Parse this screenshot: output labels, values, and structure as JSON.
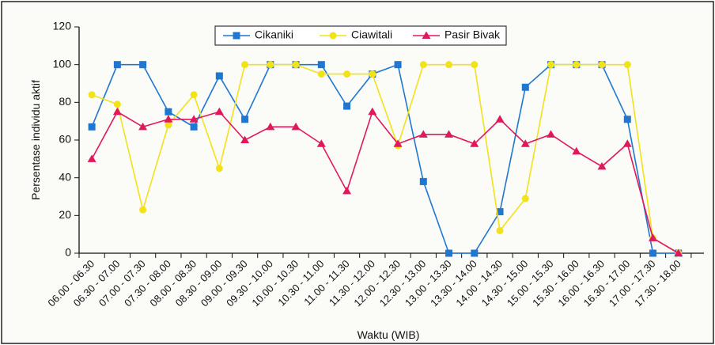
{
  "chart_data": {
    "type": "line",
    "title": "",
    "xlabel": "Waktu (WIB)",
    "ylabel": "Persentase individu aktif",
    "ylim": [
      0,
      120
    ],
    "yticks": [
      0,
      20,
      40,
      60,
      80,
      100,
      120
    ],
    "grid": false,
    "legend_position": "top-center",
    "categories": [
      "06.00 - 06.30",
      "06.30 - 07.00",
      "07.00 - 07.30",
      "07.30 - 08.00",
      "08.00 - 08.30",
      "08.30 - 09.00",
      "09.00 - 09.30",
      "09.30 - 10.00",
      "10.00 - 10.30",
      "10.30 - 11.00",
      "11.00 - 11.30",
      "11.30 - 12.00",
      "12.00 - 12.30",
      "12.30 - 13.00",
      "13.00 - 13.30",
      "13.30 - 14.00",
      "14.00 - 14.30",
      "14.30 - 15.00",
      "15.00 - 15.30",
      "15.30 - 16.00",
      "16.00 - 16.30",
      "16.30 - 17.00",
      "17.00 - 17.30",
      "17.30 - 18.00"
    ],
    "series": [
      {
        "name": "Cikaniki",
        "color": "#1f77d0",
        "marker": "square",
        "values": [
          67,
          100,
          100,
          75,
          67,
          94,
          71,
          100,
          100,
          100,
          78,
          95,
          100,
          38,
          0,
          0,
          22,
          88,
          100,
          100,
          100,
          71,
          0,
          0
        ]
      },
      {
        "name": "Ciawitali",
        "color": "#f2e21a",
        "marker": "circle",
        "values": [
          84,
          79,
          23,
          68,
          84,
          45,
          100,
          100,
          100,
          95,
          95,
          95,
          57,
          100,
          100,
          100,
          12,
          29,
          100,
          100,
          100,
          100,
          8,
          0
        ]
      },
      {
        "name": "Pasir Bivak",
        "color": "#e0185c",
        "marker": "triangle",
        "values": [
          50,
          75,
          67,
          71,
          71,
          75,
          60,
          67,
          67,
          58,
          33,
          75,
          58,
          63,
          63,
          58,
          71,
          58,
          63,
          54,
          46,
          58,
          8,
          0
        ]
      }
    ]
  }
}
